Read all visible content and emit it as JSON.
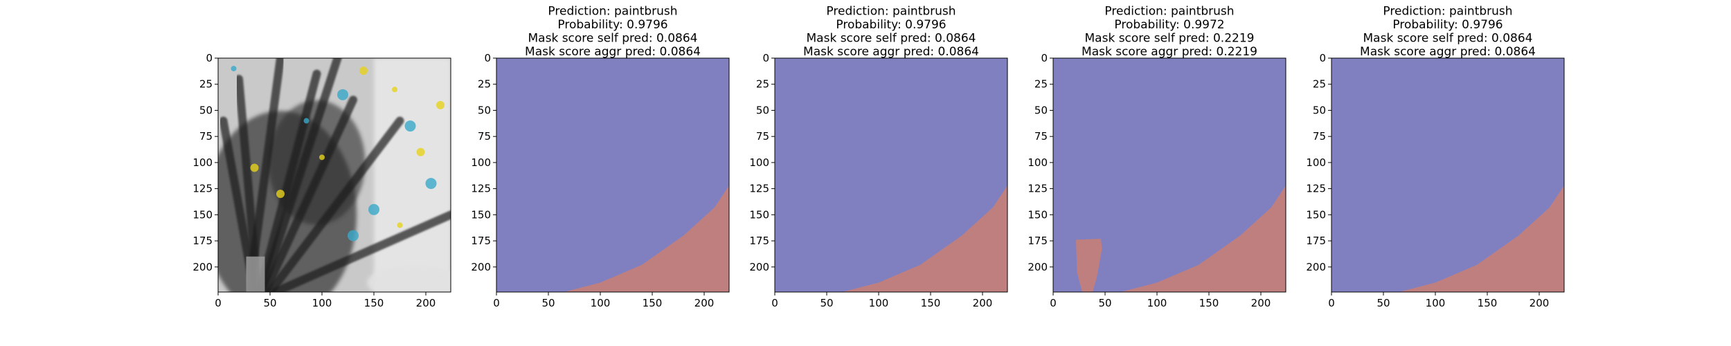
{
  "figure": {
    "panels": [
      {
        "kind": "image",
        "title_lines": []
      },
      {
        "kind": "mask",
        "title_lines": [
          "Prediction: paintbrush",
          "Probability: 0.9796",
          "Mask score self pred: 0.0864",
          "Mask score aggr pred: 0.0864"
        ],
        "regions": [
          {
            "label": "background",
            "color": "#8080c0"
          },
          {
            "label": "mask",
            "color": "#c07f7f"
          }
        ]
      },
      {
        "kind": "mask",
        "title_lines": [
          "Prediction: paintbrush",
          "Probability: 0.9796",
          "Mask score self pred: 0.0864",
          "Mask score aggr pred: 0.0864"
        ],
        "regions": [
          {
            "label": "background",
            "color": "#8080c0"
          },
          {
            "label": "mask",
            "color": "#c07f7f"
          }
        ]
      },
      {
        "kind": "mask",
        "title_lines": [
          "Prediction: paintbrush",
          "Probability: 0.9972",
          "Mask score self pred: 0.2219",
          "Mask score aggr pred: 0.2219"
        ],
        "regions": [
          {
            "label": "background",
            "color": "#8080c0"
          },
          {
            "label": "mask",
            "color": "#c07f7f"
          }
        ]
      },
      {
        "kind": "mask",
        "title_lines": [
          "Prediction: paintbrush",
          "Probability: 0.9796",
          "Mask score self pred: 0.0864",
          "Mask score aggr pred: 0.0864"
        ],
        "regions": [
          {
            "label": "background",
            "color": "#8080c0"
          },
          {
            "label": "mask",
            "color": "#c07f7f"
          }
        ]
      }
    ]
  },
  "chart_data": [
    {
      "type": "heatmap",
      "content": "photo",
      "xlim": [
        0,
        224
      ],
      "ylim": [
        224,
        0
      ],
      "xticks": [
        0,
        50,
        100,
        150,
        200
      ],
      "yticks": [
        0,
        25,
        50,
        75,
        100,
        125,
        150,
        175,
        200
      ]
    },
    {
      "type": "heatmap",
      "content": "segmentation_mask",
      "xlim": [
        0,
        224
      ],
      "ylim": [
        224,
        0
      ],
      "xticks": [
        0,
        50,
        100,
        150,
        200
      ],
      "yticks": [
        0,
        25,
        50,
        75,
        100,
        125,
        150,
        175,
        200
      ],
      "mask_boundary": [
        [
          65,
          224
        ],
        [
          100,
          215
        ],
        [
          140,
          198
        ],
        [
          180,
          170
        ],
        [
          210,
          143
        ],
        [
          224,
          122
        ]
      ]
    },
    {
      "type": "heatmap",
      "content": "segmentation_mask",
      "xlim": [
        0,
        224
      ],
      "ylim": [
        224,
        0
      ],
      "xticks": [
        0,
        50,
        100,
        150,
        200
      ],
      "yticks": [
        0,
        25,
        50,
        75,
        100,
        125,
        150,
        175,
        200
      ],
      "mask_boundary": [
        [
          65,
          224
        ],
        [
          100,
          215
        ],
        [
          140,
          198
        ],
        [
          180,
          170
        ],
        [
          210,
          143
        ],
        [
          224,
          122
        ]
      ]
    },
    {
      "type": "heatmap",
      "content": "segmentation_mask",
      "xlim": [
        0,
        224
      ],
      "ylim": [
        224,
        0
      ],
      "xticks": [
        0,
        50,
        100,
        150,
        200
      ],
      "yticks": [
        0,
        25,
        50,
        75,
        100,
        125,
        150,
        175,
        200
      ],
      "mask_boundary": [
        [
          65,
          224
        ],
        [
          100,
          215
        ],
        [
          140,
          198
        ],
        [
          180,
          170
        ],
        [
          210,
          143
        ],
        [
          224,
          122
        ]
      ],
      "extra_blob": [
        [
          22,
          174
        ],
        [
          46,
          173
        ],
        [
          47,
          183
        ],
        [
          42,
          210
        ],
        [
          38,
          224
        ],
        [
          28,
          224
        ],
        [
          23,
          205
        ]
      ]
    },
    {
      "type": "heatmap",
      "content": "segmentation_mask",
      "xlim": [
        0,
        224
      ],
      "ylim": [
        224,
        0
      ],
      "xticks": [
        0,
        50,
        100,
        150,
        200
      ],
      "yticks": [
        0,
        25,
        50,
        75,
        100,
        125,
        150,
        175,
        200
      ],
      "mask_boundary": [
        [
          65,
          224
        ],
        [
          100,
          215
        ],
        [
          140,
          198
        ],
        [
          180,
          170
        ],
        [
          210,
          143
        ],
        [
          224,
          122
        ]
      ]
    }
  ]
}
